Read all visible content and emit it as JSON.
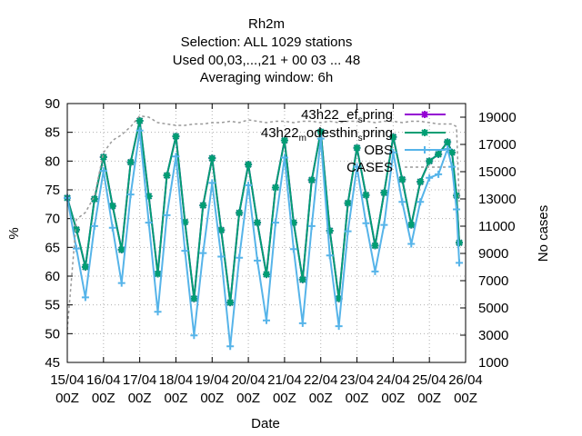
{
  "chart_data": {
    "type": "line",
    "title_lines": [
      "Rh2m",
      "Selection: ALL   1029 stations",
      "Used  00,03,...,21  + 00 03 ... 48",
      "Averaging window:  6h"
    ],
    "xlabel": "Date",
    "ylabel": "%",
    "y2label": "No cases",
    "ylim": [
      45,
      90
    ],
    "y2lim": [
      1000,
      20000
    ],
    "yticks": [
      45,
      50,
      55,
      60,
      65,
      70,
      75,
      80,
      85,
      90
    ],
    "y2ticks": [
      1000,
      3000,
      5000,
      7000,
      9000,
      11000,
      13000,
      15000,
      17000,
      19000
    ],
    "xlim": [
      0,
      44
    ],
    "xticks": [
      {
        "pos": 0,
        "line1": "15/04",
        "line2": "00Z"
      },
      {
        "pos": 4,
        "line1": "16/04",
        "line2": "00Z"
      },
      {
        "pos": 8,
        "line1": "17/04",
        "line2": "00Z"
      },
      {
        "pos": 12,
        "line1": "18/04",
        "line2": "00Z"
      },
      {
        "pos": 16,
        "line1": "19/04",
        "line2": "00Z"
      },
      {
        "pos": 20,
        "line1": "20/04",
        "line2": "00Z"
      },
      {
        "pos": 24,
        "line1": "21/04",
        "line2": "00Z"
      },
      {
        "pos": 28,
        "line1": "22/04",
        "line2": "00Z"
      },
      {
        "pos": 32,
        "line1": "23/04",
        "line2": "00Z"
      },
      {
        "pos": 36,
        "line1": "24/04",
        "line2": "00Z"
      },
      {
        "pos": 40,
        "line1": "25/04",
        "line2": "00Z"
      },
      {
        "pos": 44,
        "line1": "26/04",
        "line2": "00Z"
      }
    ],
    "grid": true,
    "legend_position": "top-right",
    "series": [
      {
        "name": "43h22_ef_spring",
        "legend": {
          "main": "43h22_ef",
          "sub": "s",
          "tail": "pring"
        },
        "color": "#9400d3",
        "marker": "star",
        "axis": "y",
        "x": [
          0,
          1,
          2,
          3,
          4,
          5,
          6,
          7,
          8,
          9,
          10,
          11,
          12,
          13,
          14,
          15,
          16,
          17,
          18,
          19,
          20,
          21,
          22,
          23,
          24,
          25,
          26,
          27,
          28,
          29,
          30,
          31,
          32,
          33,
          34,
          35,
          36,
          37,
          38,
          39,
          40,
          41,
          42,
          42.5,
          43,
          43.3
        ],
        "values": [
          73.6,
          68.1,
          61.6,
          73.4,
          80.7,
          72.2,
          64.6,
          79.8,
          87.0,
          73.9,
          60.4,
          77.5,
          84.3,
          69.4,
          56.1,
          72.3,
          80.5,
          68.0,
          55.4,
          71.0,
          79.4,
          69.3,
          60.3,
          75.4,
          83.6,
          69.3,
          59.4,
          76.7,
          85.1,
          67.9,
          56.1,
          72.7,
          82.3,
          74.1,
          65.3,
          74.5,
          84.2,
          76.8,
          68.9,
          76.4,
          80.0,
          81.2,
          83.3,
          81.5,
          74.0,
          65.8
        ]
      },
      {
        "name": "43h22_modesthin_spring",
        "legend": {
          "main": "43h22",
          "sub": "m",
          "tail": "odesthin",
          "sub2": "s",
          "tail2": "pring"
        },
        "color": "#009e73",
        "marker": "star",
        "axis": "y",
        "x": [
          0,
          1,
          2,
          3,
          4,
          5,
          6,
          7,
          8,
          9,
          10,
          11,
          12,
          13,
          14,
          15,
          16,
          17,
          18,
          19,
          20,
          21,
          22,
          23,
          24,
          25,
          26,
          27,
          28,
          29,
          30,
          31,
          32,
          33,
          34,
          35,
          36,
          37,
          38,
          39,
          40,
          41,
          42,
          42.5,
          43,
          43.3
        ],
        "values": [
          73.6,
          68.1,
          61.6,
          73.4,
          80.7,
          72.2,
          64.6,
          79.8,
          87.0,
          73.9,
          60.4,
          77.5,
          84.3,
          69.4,
          56.1,
          72.3,
          80.5,
          68.0,
          55.4,
          71.0,
          79.4,
          69.3,
          60.3,
          75.4,
          83.6,
          69.3,
          59.4,
          76.7,
          85.1,
          67.9,
          56.1,
          72.7,
          82.3,
          74.1,
          65.3,
          74.5,
          84.2,
          76.8,
          68.9,
          76.4,
          80.0,
          81.2,
          83.3,
          81.5,
          74.0,
          65.8
        ]
      },
      {
        "name": "OBS",
        "legend": {
          "main": "OBS"
        },
        "color": "#56b4e9",
        "marker": "plus",
        "axis": "y",
        "x": [
          0,
          1,
          2,
          3,
          4,
          5,
          6,
          7,
          8,
          9,
          10,
          11,
          12,
          13,
          14,
          15,
          16,
          17,
          18,
          19,
          20,
          21,
          22,
          23,
          24,
          25,
          26,
          27,
          28,
          29,
          30,
          31,
          32,
          33,
          34,
          35,
          36,
          37,
          38,
          39,
          40,
          41,
          42,
          42.5,
          43,
          43.3
        ],
        "values": [
          73.6,
          64.8,
          56.3,
          68.7,
          78.3,
          68.4,
          58.8,
          74.2,
          85.3,
          69.3,
          53.8,
          70.6,
          80.8,
          64.4,
          49.7,
          64.0,
          76.2,
          63.4,
          47.8,
          63.2,
          75.8,
          62.7,
          52.3,
          69.3,
          80.6,
          64.7,
          51.8,
          68.7,
          83.9,
          63.6,
          51.3,
          67.8,
          79.0,
          69.2,
          60.8,
          68.9,
          81.5,
          72.9,
          65.6,
          72.9,
          77.1,
          77.7,
          82.1,
          79.0,
          71.6,
          62.3
        ]
      },
      {
        "name": "CASES",
        "legend": {
          "main": "CASES"
        },
        "color": "#999999",
        "marker": "none",
        "dash": true,
        "axis": "y2",
        "x": [
          0,
          1,
          2,
          3,
          4,
          5,
          6,
          7,
          8,
          9,
          10,
          11,
          12,
          13,
          14,
          15,
          16,
          17,
          18,
          19,
          20,
          21,
          22,
          23,
          24,
          25,
          26,
          27,
          28,
          29,
          30,
          31,
          32,
          33,
          34,
          35,
          36,
          37,
          38,
          39,
          40,
          41,
          42,
          42.5,
          43,
          43.3
        ],
        "values": [
          3400,
          11500,
          12000,
          13200,
          16400,
          17300,
          17700,
          18300,
          19100,
          19000,
          18600,
          18500,
          18400,
          18400,
          18500,
          18500,
          18600,
          18600,
          18700,
          18600,
          18800,
          18700,
          18600,
          18700,
          18700,
          18600,
          18700,
          18700,
          18600,
          18700,
          18600,
          18700,
          18700,
          18700,
          18600,
          18700,
          18700,
          18600,
          18700,
          18700,
          18600,
          18500,
          18500,
          18500,
          18300,
          12800
        ]
      }
    ]
  }
}
